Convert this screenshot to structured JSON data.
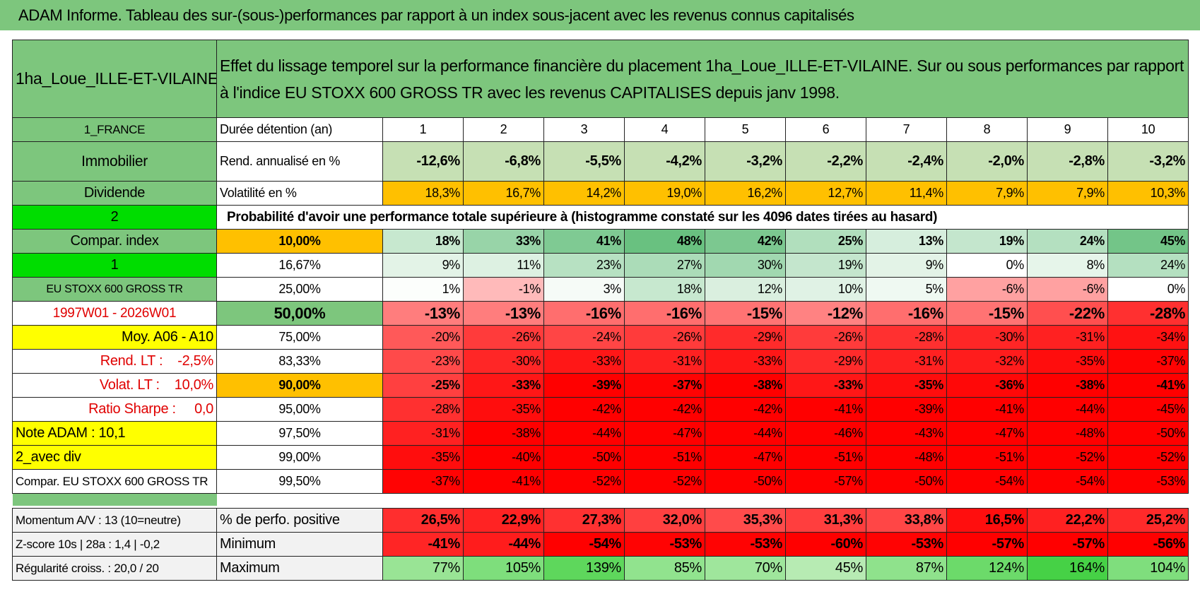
{
  "header": {
    "title": "ADAM Informe. Tableau des sur-(sous-)performances par rapport à un index sous-jacent avec les revenus connus capitalisés"
  },
  "table": {
    "corner": "1ha_Loue_ILLE-ET-VILAINE",
    "description": "Effet du lissage temporel sur la performance financière du placement 1ha_Loue_ILLE-ET-VILAINE. Sur ou sous performances par rapport à l'indice EU STOXX 600 GROSS TR avec les revenus CAPITALISES depuis janv 1998.",
    "rows": [
      [
        "1_FRANCE",
        "Durée détention (an)",
        "1",
        "2",
        "3",
        "4",
        "5",
        "6",
        "7",
        "8",
        "9",
        "10"
      ],
      [
        "Immobilier",
        "Rend. annualisé en %",
        "-12,6%",
        "-6,8%",
        "-5,5%",
        "-4,2%",
        "-3,2%",
        "-2,2%",
        "-2,4%",
        "-2,0%",
        "-2,8%",
        "-3,2%"
      ],
      [
        "Dividende",
        "Volatilité en %",
        "18,3%",
        "16,7%",
        "14,2%",
        "19,0%",
        "16,2%",
        "12,7%",
        "11,4%",
        "7,9%",
        "7,9%",
        "10,3%"
      ],
      [
        "2",
        "Probabilité d'avoir une performance totale supérieure à (histogramme constaté sur les 4096 dates tirées au hasard)"
      ],
      [
        "Compar. index",
        "10,00%",
        "18%",
        "33%",
        "41%",
        "48%",
        "42%",
        "25%",
        "13%",
        "19%",
        "24%",
        "45%"
      ],
      [
        "1",
        "16,67%",
        "9%",
        "11%",
        "23%",
        "27%",
        "30%",
        "19%",
        "9%",
        "0%",
        "8%",
        "24%"
      ],
      [
        "EU STOXX 600 GROSS TR",
        "25,00%",
        "1%",
        "-1%",
        "3%",
        "18%",
        "12%",
        "10%",
        "5%",
        "-6%",
        "-6%",
        "0%"
      ],
      [
        "1997W01 - 2026W01",
        "50,00%",
        "-13%",
        "-13%",
        "-16%",
        "-16%",
        "-15%",
        "-12%",
        "-16%",
        "-15%",
        "-22%",
        "-28%"
      ],
      [
        "Moy. A06 - A10",
        "75,00%",
        "-20%",
        "-26%",
        "-24%",
        "-26%",
        "-29%",
        "-26%",
        "-28%",
        "-30%",
        "-31%",
        "-34%"
      ],
      [
        "Rend. LT :    -2,5%",
        "83,33%",
        "-23%",
        "-30%",
        "-33%",
        "-31%",
        "-33%",
        "-29%",
        "-31%",
        "-32%",
        "-35%",
        "-37%"
      ],
      [
        "Volat. LT :    10,0%",
        "90,00%",
        "-25%",
        "-33%",
        "-39%",
        "-37%",
        "-38%",
        "-33%",
        "-35%",
        "-36%",
        "-38%",
        "-41%"
      ],
      [
        "Ratio Sharpe :     0,0",
        "95,00%",
        "-28%",
        "-35%",
        "-42%",
        "-42%",
        "-42%",
        "-41%",
        "-39%",
        "-41%",
        "-44%",
        "-45%"
      ],
      [
        "Note ADAM : 10,1",
        "97,50%",
        "-31%",
        "-38%",
        "-44%",
        "-47%",
        "-44%",
        "-46%",
        "-43%",
        "-47%",
        "-48%",
        "-50%"
      ],
      [
        "2_avec div",
        "99,00%",
        "-35%",
        "-40%",
        "-50%",
        "-51%",
        "-47%",
        "-51%",
        "-48%",
        "-51%",
        "-52%",
        "-52%"
      ],
      [
        "Compar. EU STOXX 600 GROSS TR",
        "99,50%",
        "-37%",
        "-41%",
        "-52%",
        "-52%",
        "-50%",
        "-57%",
        "-50%",
        "-54%",
        "-54%",
        "-53%"
      ]
    ],
    "summary_rows": [
      [
        "Momentum A/V : 13 (10=neutre)",
        "% de perfo. positive",
        "26,5%",
        "22,9%",
        "27,3%",
        "32,0%",
        "35,3%",
        "31,3%",
        "33,8%",
        "16,5%",
        "22,2%",
        "25,2%"
      ],
      [
        "Z-score 10s | 28a : 1,4 | -0,2",
        "Minimum",
        "-41%",
        "-44%",
        "-54%",
        "-53%",
        "-53%",
        "-60%",
        "-53%",
        "-57%",
        "-57%",
        "-56%"
      ],
      [
        "Régularité croiss. : 20,0 / 20",
        "Maximum",
        "77%",
        "105%",
        "139%",
        "85%",
        "70%",
        "45%",
        "87%",
        "124%",
        "164%",
        "104%"
      ]
    ]
  }
}
